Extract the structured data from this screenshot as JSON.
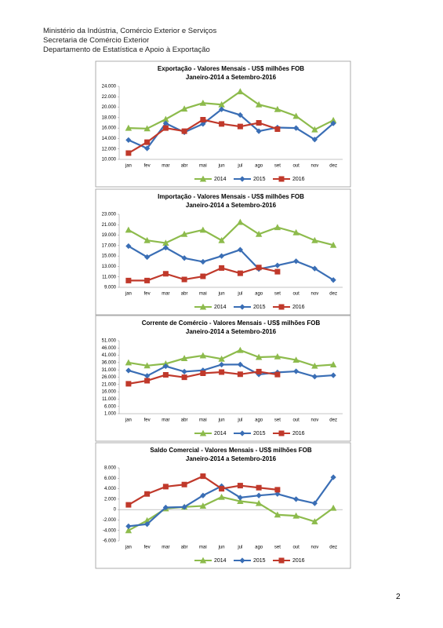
{
  "header": [
    "Ministério da Indústria, Comércio Exterior e Serviços",
    "Secretaria de Comércio Exterior",
    "Departamento de Estatística e Apoio à Exportação"
  ],
  "page_number": "2",
  "chart_data": [
    {
      "type": "line",
      "title": "Exportação - Valores Mensais -  US$ milhões FOB",
      "subtitle": "Janeiro-2014 a Setembro-2016",
      "categories": [
        "jan",
        "fev",
        "mar",
        "abr",
        "mai",
        "jun",
        "jul",
        "ago",
        "set",
        "out",
        "nov",
        "dez"
      ],
      "series": [
        {
          "name": "2014",
          "color": "#8dbb4c",
          "marker": "triangle",
          "values": [
            16000,
            15900,
            17700,
            19700,
            20800,
            20500,
            23000,
            20500,
            19600,
            18300,
            15700,
            17500
          ]
        },
        {
          "name": "2015",
          "color": "#3a6eb5",
          "marker": "diamond",
          "values": [
            13700,
            12100,
            16900,
            15200,
            16800,
            19600,
            18500,
            15400,
            16100,
            16000,
            13800,
            16900
          ]
        },
        {
          "name": "2016",
          "color": "#c0392b",
          "marker": "square",
          "values": [
            11200,
            13300,
            16000,
            15400,
            17600,
            16800,
            16300,
            17000,
            15800,
            null,
            null,
            null
          ]
        }
      ],
      "ylim": [
        10000,
        24000
      ],
      "yticks": [
        {
          "value": 10000,
          "label": "10.000"
        },
        {
          "value": 12000,
          "label": "12.000"
        },
        {
          "value": 14000,
          "label": "14.000"
        },
        {
          "value": 16000,
          "label": "16.000"
        },
        {
          "value": 18000,
          "label": "18.000"
        },
        {
          "value": 20000,
          "label": "20.000"
        },
        {
          "value": 22000,
          "label": "22.000"
        },
        {
          "value": 24000,
          "label": "24.000"
        }
      ],
      "grid": false,
      "legend": "bottom"
    },
    {
      "type": "line",
      "title": "Importação - Valores Mensais -  US$ milhões FOB",
      "subtitle": "Janeiro-2014 a Setembro-2016",
      "categories": [
        "jan",
        "fev",
        "mar",
        "abr",
        "mai",
        "jun",
        "jul",
        "ago",
        "set",
        "out",
        "nov",
        "dez"
      ],
      "series": [
        {
          "name": "2014",
          "color": "#8dbb4c",
          "marker": "triangle",
          "values": [
            20000,
            18000,
            17500,
            19200,
            20000,
            18000,
            21500,
            19200,
            20500,
            19500,
            18000,
            17100
          ]
        },
        {
          "name": "2015",
          "color": "#3a6eb5",
          "marker": "diamond",
          "values": [
            16900,
            14800,
            16600,
            14600,
            13900,
            15000,
            16200,
            12500,
            13200,
            14000,
            12600,
            10400
          ]
        },
        {
          "name": "2016",
          "color": "#c0392b",
          "marker": "square",
          "values": [
            10300,
            10300,
            11600,
            10500,
            11100,
            12700,
            11700,
            12800,
            12000,
            null,
            null,
            null
          ]
        }
      ],
      "ylim": [
        9000,
        23000
      ],
      "yticks": [
        {
          "value": 9000,
          "label": "9.000"
        },
        {
          "value": 11000,
          "label": "11.000"
        },
        {
          "value": 13000,
          "label": "13.000"
        },
        {
          "value": 15000,
          "label": "15.000"
        },
        {
          "value": 17000,
          "label": "17.000"
        },
        {
          "value": 19000,
          "label": "19.000"
        },
        {
          "value": 21000,
          "label": "21.000"
        },
        {
          "value": 23000,
          "label": "23.000"
        }
      ],
      "grid": false,
      "legend": "bottom"
    },
    {
      "type": "line",
      "title": "Corrente de Comércio - Valores Mensais -  US$ milhões FOB",
      "subtitle": "Janeiro-2014 a Setembro-2016",
      "categories": [
        "jan",
        "fev",
        "mar",
        "abr",
        "mai",
        "jun",
        "jul",
        "ago",
        "set",
        "out",
        "nov",
        "dez"
      ],
      "series": [
        {
          "name": "2014",
          "color": "#8dbb4c",
          "marker": "triangle",
          "values": [
            36000,
            33900,
            35200,
            38900,
            40800,
            38500,
            44500,
            39700,
            40100,
            37800,
            33700,
            34600
          ]
        },
        {
          "name": "2015",
          "color": "#3a6eb5",
          "marker": "diamond",
          "values": [
            30600,
            26900,
            33500,
            29800,
            30700,
            34600,
            34700,
            27900,
            29300,
            30000,
            26400,
            27300
          ]
        },
        {
          "name": "2016",
          "color": "#c0392b",
          "marker": "square",
          "values": [
            21500,
            23600,
            27600,
            25900,
            28700,
            29500,
            28000,
            29800,
            27800,
            null,
            null,
            null
          ]
        }
      ],
      "ylim": [
        1000,
        51000
      ],
      "yticks": [
        {
          "value": 1000,
          "label": "1.000"
        },
        {
          "value": 6000,
          "label": "6.000"
        },
        {
          "value": 11000,
          "label": "11.000"
        },
        {
          "value": 16000,
          "label": "16.000"
        },
        {
          "value": 21000,
          "label": "21.000"
        },
        {
          "value": 26000,
          "label": "26.000"
        },
        {
          "value": 31000,
          "label": "31.000"
        },
        {
          "value": 36000,
          "label": "36.000"
        },
        {
          "value": 41000,
          "label": "41.000"
        },
        {
          "value": 46000,
          "label": "46.000"
        },
        {
          "value": 51000,
          "label": "51.000"
        }
      ],
      "grid": false,
      "legend": "bottom"
    },
    {
      "type": "line",
      "title": "Saldo Comercial - Valores Mensais - US$ milhões FOB",
      "subtitle": "Janeiro-2014 a Setembro-2016",
      "categories": [
        "jan",
        "fev",
        "mar",
        "abr",
        "mai",
        "jun",
        "jul",
        "ago",
        "set",
        "out",
        "nov",
        "dez"
      ],
      "series": [
        {
          "name": "2014",
          "color": "#8dbb4c",
          "marker": "triangle",
          "values": [
            -4000,
            -2100,
            200,
            500,
            700,
            2400,
            1600,
            1200,
            -1000,
            -1200,
            -2300,
            300
          ]
        },
        {
          "name": "2015",
          "color": "#3a6eb5",
          "marker": "diamond",
          "values": [
            -3200,
            -2800,
            400,
            500,
            2700,
            4500,
            2300,
            2700,
            3000,
            2000,
            1200,
            6200
          ]
        },
        {
          "name": "2016",
          "color": "#c0392b",
          "marker": "square",
          "values": [
            900,
            3000,
            4400,
            4800,
            6400,
            4000,
            4600,
            4200,
            3800,
            null,
            null,
            null
          ]
        }
      ],
      "ylim": [
        -6000,
        8000
      ],
      "yticks": [
        {
          "value": -6000,
          "label": "-6.000"
        },
        {
          "value": -4000,
          "label": "-4.000"
        },
        {
          "value": -2000,
          "label": "-2.000"
        },
        0,
        {
          "value": 2000,
          "label": "2.000"
        },
        {
          "value": 4000,
          "label": "4.000"
        },
        {
          "value": 6000,
          "label": "6.000"
        },
        {
          "value": 8000,
          "label": "8.000"
        }
      ],
      "grid": false,
      "legend": "bottom"
    }
  ]
}
